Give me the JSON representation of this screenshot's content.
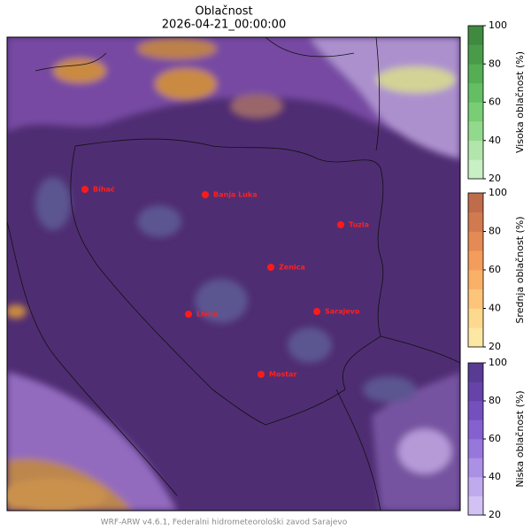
{
  "header": {
    "title": "Oblačnost",
    "datetime": "2026-04-21_00:00:00"
  },
  "cities": [
    "Bihać",
    "Banja Luka",
    "Tuzla",
    "Zenica",
    "Livno",
    "Sarajevo",
    "Mostar"
  ],
  "colorbars": [
    {
      "label": "Visoka oblačnost (%)",
      "ticks": [
        20,
        40,
        60,
        80,
        100
      ],
      "colors": [
        "#c9efc4",
        "#b2e5ab",
        "#93d98d",
        "#79cd74",
        "#64be63",
        "#55ad54",
        "#4a9b49",
        "#3f8a40"
      ]
    },
    {
      "label": "Srednja oblačnost (%)",
      "ticks": [
        20,
        40,
        60,
        80,
        100
      ],
      "colors": [
        "#fde7a4",
        "#fdd88f",
        "#fcc57a",
        "#fbb068",
        "#f49c5c",
        "#e48a55",
        "#d27a4f",
        "#bf6c4b"
      ]
    },
    {
      "label": "Niska oblačnost (%)",
      "ticks": [
        20,
        40,
        60,
        80,
        100
      ],
      "colors": [
        "#d2c2f4",
        "#c0aaee",
        "#ab90e6",
        "#9777dc",
        "#8561cf",
        "#744fbe",
        "#6543a8",
        "#583b92"
      ]
    }
  ],
  "footer": "WRF-ARW v4.6.1, Federalni hidrometeorološki zavod Sarajevo"
}
